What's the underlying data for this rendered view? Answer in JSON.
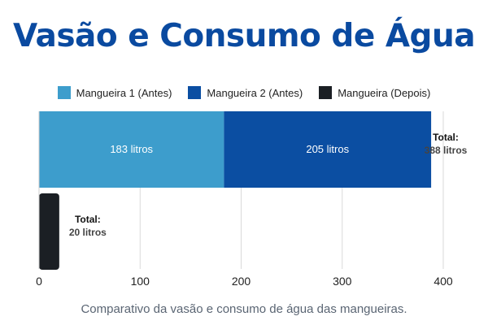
{
  "title": "Vasão e Consumo de Água",
  "caption": "Comparativo da vasão e consumo de água das mangueiras.",
  "chart_data": {
    "type": "bar",
    "orientation": "horizontal",
    "stacked": true,
    "title": "Vasão e Consumo de Água",
    "xlim": [
      0,
      400
    ],
    "x_ticks": [
      0,
      100,
      200,
      300,
      400
    ],
    "grid": true,
    "legend_position": "top-center",
    "series": [
      {
        "name": "Mangueira 1 (Antes)",
        "color": "#3d9dcc",
        "values": [
          183,
          0
        ],
        "labels": [
          "183 litros",
          ""
        ]
      },
      {
        "name": "Mangueira 2 (Antes)",
        "color": "#0b4ea2",
        "values": [
          205,
          0
        ],
        "labels": [
          "205 litros",
          ""
        ]
      },
      {
        "name": "Mangueira (Depois)",
        "color": "#1b1f24",
        "values": [
          0,
          20
        ],
        "labels": [
          "",
          ""
        ]
      }
    ],
    "totals": [
      {
        "heading": "Total:",
        "value": "388 litros"
      },
      {
        "heading": "Total:",
        "value": "20 litros"
      }
    ]
  }
}
